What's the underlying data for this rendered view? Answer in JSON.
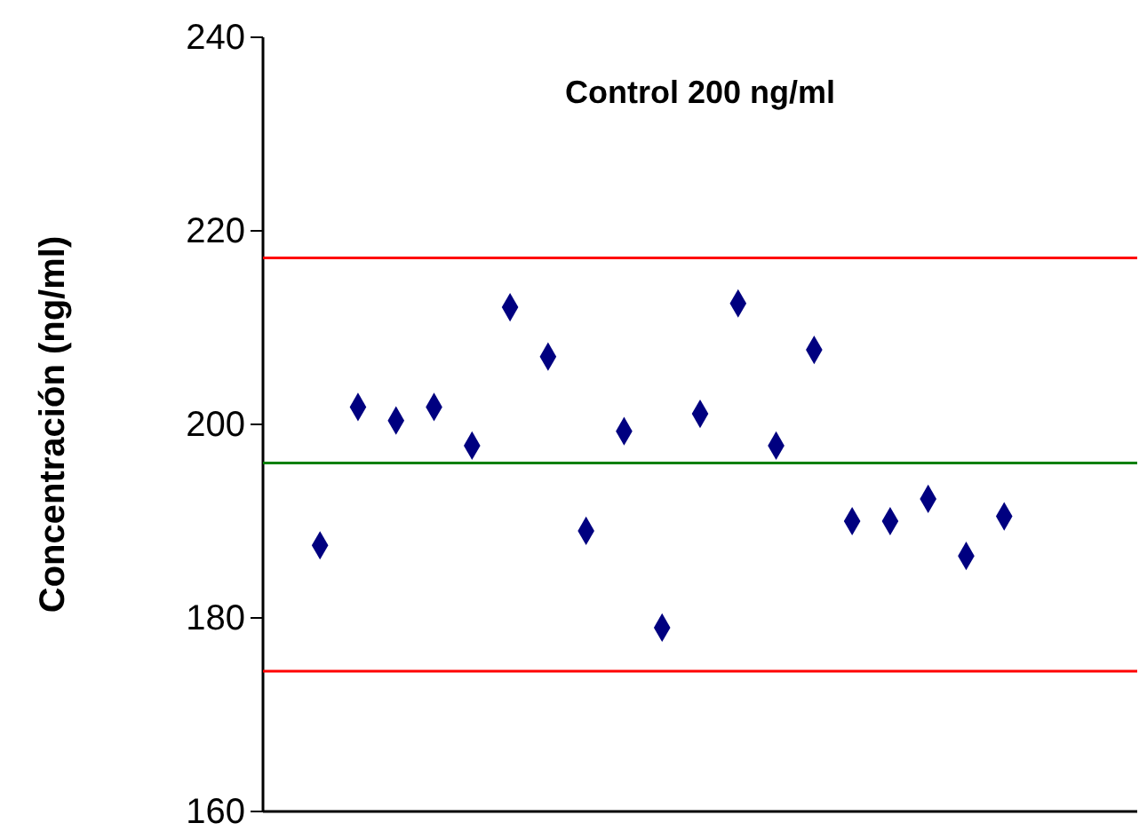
{
  "chart_data": {
    "type": "scatter",
    "title": "Control 200 ng/ml",
    "ylabel": "Concentración (ng/ml)",
    "categories": [
      null,
      null,
      null,
      null,
      null,
      null,
      null,
      null,
      null,
      null,
      null,
      null,
      null,
      null,
      null,
      null,
      null,
      null,
      null,
      null,
      null,
      null,
      null
    ],
    "series": [
      {
        "color": "#000080",
        "values": [
          null,
          187.5,
          201.8,
          200.4,
          201.8,
          197.8,
          212.1,
          207,
          189,
          199.3,
          179,
          201.1,
          212.5,
          197.8,
          207.7,
          190,
          190,
          192.3,
          186.4,
          190.5,
          null,
          null,
          null
        ]
      }
    ],
    "ylim": [
      160,
      240
    ],
    "yticks": [
      160,
      180,
      200,
      220,
      240
    ],
    "marker": "diamond",
    "tick_labels": "y",
    "ref_lines": [
      {
        "axis": "y",
        "value": 217.2,
        "color": "#ff0000"
      },
      {
        "axis": "y",
        "value": 196,
        "color": "#008000"
      },
      {
        "axis": "y",
        "value": 174.5,
        "color": "#ff0000"
      }
    ]
  }
}
